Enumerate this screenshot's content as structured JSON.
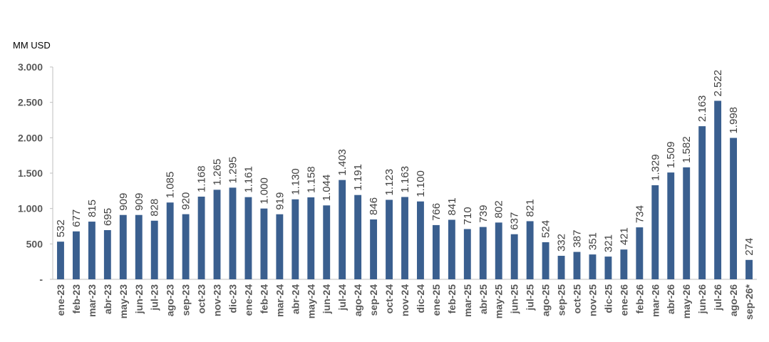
{
  "chart_data": {
    "type": "bar",
    "ylabel": "MM USD",
    "ylim": [
      0,
      3000
    ],
    "yticks": [
      0,
      500,
      1000,
      1500,
      2000,
      2500,
      3000
    ],
    "ytick_labels": [
      "-",
      "500",
      "1.000",
      "1.500",
      "2.000",
      "2.500",
      "3.000"
    ],
    "grid": false,
    "bar_color": "#3A5F8F",
    "categories": [
      "ene-23",
      "feb-23",
      "mar-23",
      "abr-23",
      "may-23",
      "jun-23",
      "jul-23",
      "ago-23",
      "sep-23",
      "oct-23",
      "nov-23",
      "dic-23",
      "ene-24",
      "feb-24",
      "mar-24",
      "abr-24",
      "may-24",
      "jun-24",
      "jul-24",
      "ago-24",
      "sep-24",
      "oct-24",
      "nov-24",
      "dic-24",
      "ene-25",
      "feb-25",
      "mar-25",
      "abr-25",
      "may-25",
      "jun-25",
      "jul-25",
      "ago-25",
      "sep-25",
      "oct-25",
      "nov-25",
      "dic-25",
      "ene-26",
      "feb-26",
      "mar-26",
      "abr-26",
      "may-26",
      "jun-26",
      "jul-26",
      "ago-26",
      "sep-26*"
    ],
    "values": [
      532,
      677,
      815,
      695,
      909,
      909,
      828,
      1085,
      920,
      1168,
      1265,
      1295,
      1161,
      1000,
      919,
      1130,
      1158,
      1044,
      1403,
      1191,
      846,
      1123,
      1163,
      1100,
      766,
      841,
      710,
      739,
      802,
      637,
      821,
      524,
      332,
      387,
      351,
      321,
      421,
      734,
      1329,
      1509,
      1582,
      2163,
      2522,
      1998,
      274
    ],
    "value_labels": [
      "532",
      "677",
      "815",
      "695",
      "909",
      "909",
      "828",
      "1.085",
      "920",
      "1.168",
      "1.265",
      "1.295",
      "1.161",
      "1.000",
      "919",
      "1.130",
      "1.158",
      "1.044",
      "1.403",
      "1.191",
      "846",
      "1.123",
      "1.163",
      "1.100",
      "766",
      "841",
      "710",
      "739",
      "802",
      "637",
      "821",
      "524",
      "332",
      "387",
      "351",
      "321",
      "421",
      "734",
      "1.329",
      "1.509",
      "1.582",
      "2.163",
      "2.522",
      "1.998",
      "274"
    ]
  }
}
